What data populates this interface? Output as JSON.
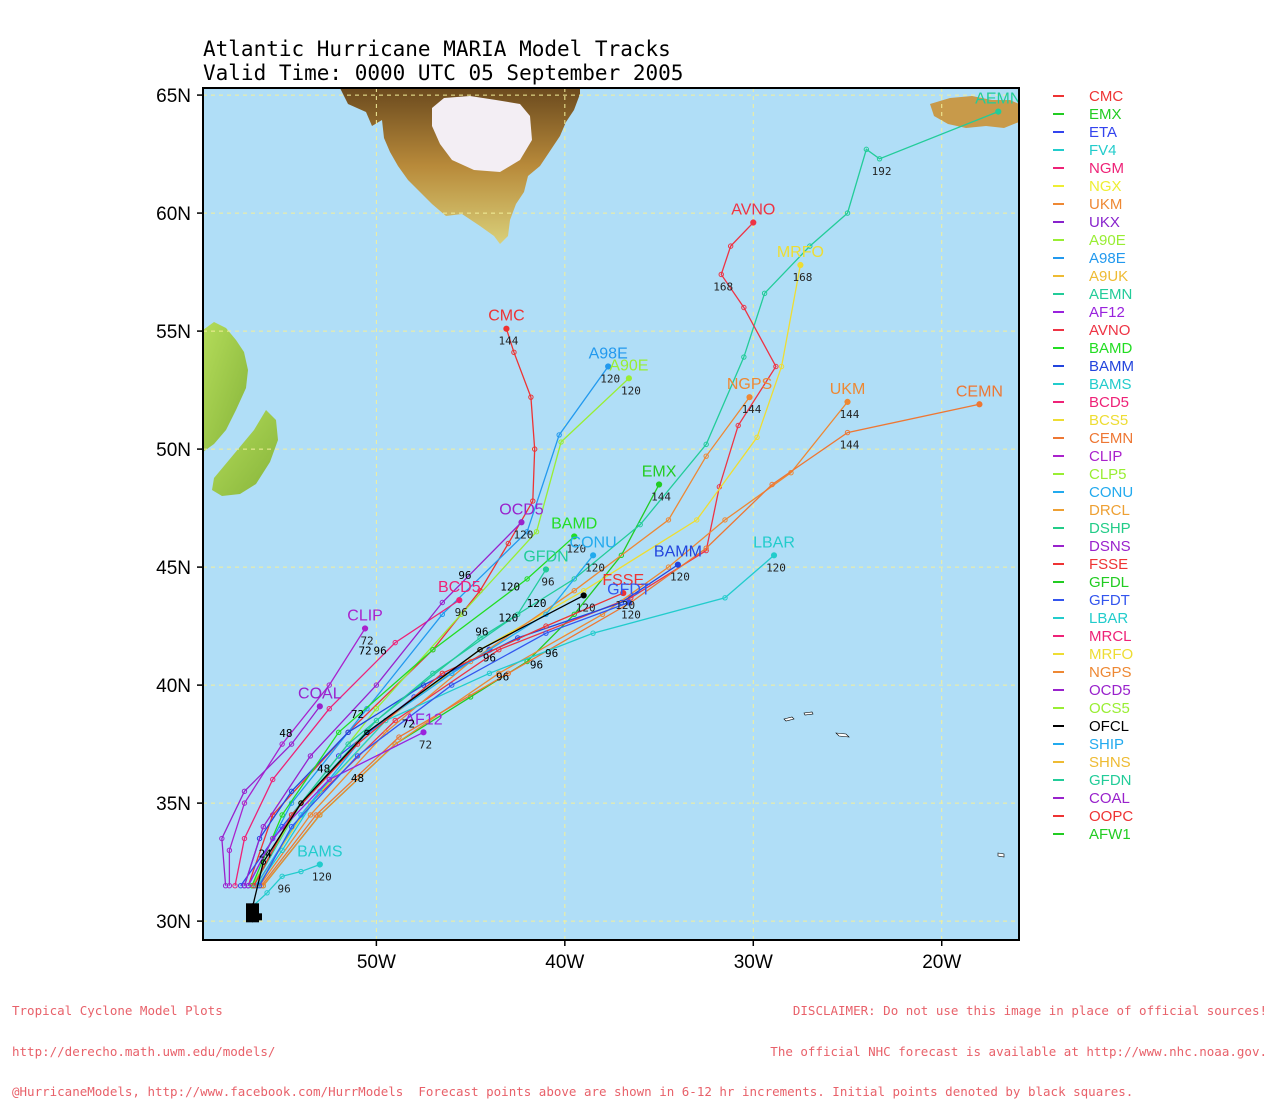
{
  "title": {
    "line1": "Atlantic Hurricane MARIA Model Tracks",
    "line2": "Valid Time: 0000 UTC 05 September 2005"
  },
  "axes": {
    "lat_labels": [
      "30N",
      "35N",
      "40N",
      "45N",
      "50N",
      "55N",
      "60N",
      "65N"
    ],
    "lon_labels": [
      "50W",
      "40W",
      "30W",
      "20W"
    ],
    "lat_range": [
      29.2,
      65.3
    ],
    "lon_range": [
      -59.2,
      -15.9
    ]
  },
  "colors": {
    "ocean": "#b0def7",
    "grid": "#f3f09a",
    "land_low": "#9ccc3a",
    "land_high": "#b5782a",
    "ice": "#ffffff"
  },
  "legend": [
    {
      "name": "CMC",
      "color": "#ee3333"
    },
    {
      "name": "EMX",
      "color": "#22cc22"
    },
    {
      "name": "ETA",
      "color": "#3344ee"
    },
    {
      "name": "FV4",
      "color": "#22cccc"
    },
    {
      "name": "NGM",
      "color": "#ee2277"
    },
    {
      "name": "NGX",
      "color": "#eeee33"
    },
    {
      "name": "UKM",
      "color": "#ee8833"
    },
    {
      "name": "UKX",
      "color": "#8822cc"
    },
    {
      "name": "A90E",
      "color": "#99ee33"
    },
    {
      "name": "A98E",
      "color": "#2299ee"
    },
    {
      "name": "A9UK",
      "color": "#eebb33"
    },
    {
      "name": "AEMN",
      "color": "#22cc99"
    },
    {
      "name": "AF12",
      "color": "#9922dd"
    },
    {
      "name": "AVNO",
      "color": "#ee3344"
    },
    {
      "name": "BAMD",
      "color": "#22dd22"
    },
    {
      "name": "BAMM",
      "color": "#2244dd"
    },
    {
      "name": "BAMS",
      "color": "#22cccc"
    },
    {
      "name": "BCD5",
      "color": "#ee2277"
    },
    {
      "name": "BCS5",
      "color": "#eedd33"
    },
    {
      "name": "CEMN",
      "color": "#ee7733"
    },
    {
      "name": "CLIP",
      "color": "#aa22cc"
    },
    {
      "name": "CLP5",
      "color": "#99ee33"
    },
    {
      "name": "CONU",
      "color": "#22aaee"
    },
    {
      "name": "DRCL",
      "color": "#eea033"
    },
    {
      "name": "DSHP",
      "color": "#22cc88"
    },
    {
      "name": "DSNS",
      "color": "#9922cc"
    },
    {
      "name": "FSSE",
      "color": "#ee3333"
    },
    {
      "name": "GFDL",
      "color": "#22cc22"
    },
    {
      "name": "GFDT",
      "color": "#3355ee"
    },
    {
      "name": "LBAR",
      "color": "#22cccc"
    },
    {
      "name": "MRCL",
      "color": "#ee2277"
    },
    {
      "name": "MRFO",
      "color": "#eedd33"
    },
    {
      "name": "NGPS",
      "color": "#ee8833"
    },
    {
      "name": "OCD5",
      "color": "#9922cc"
    },
    {
      "name": "OCS5",
      "color": "#99ee33"
    },
    {
      "name": "OFCL",
      "color": "#000000"
    },
    {
      "name": "SHIP",
      "color": "#22aaee"
    },
    {
      "name": "SHNS",
      "color": "#eebb33"
    },
    {
      "name": "GFDN",
      "color": "#22cc99"
    },
    {
      "name": "COAL",
      "color": "#9922cc"
    },
    {
      "name": "OOPC",
      "color": "#ee3333"
    },
    {
      "name": "AFW1",
      "color": "#22cc22"
    }
  ],
  "start": {
    "lat": 30.5,
    "lon": -56.6
  },
  "tracks": [
    {
      "name": "CMC",
      "color": "#ee3333",
      "label": "CMC",
      "pts": [
        [
          31.5,
          -56.8
        ],
        [
          34.5,
          -55.5
        ],
        [
          38.0,
          -51.5
        ],
        [
          41.5,
          -47.0
        ],
        [
          44.0,
          -44.5
        ],
        [
          46.0,
          -43.0
        ],
        [
          47.8,
          -41.7
        ],
        [
          50.0,
          -41.6
        ],
        [
          52.2,
          -41.8
        ],
        [
          54.1,
          -42.7
        ],
        [
          55.1,
          -43.1
        ]
      ],
      "ticks": [
        {
          "i": 10,
          "t": "144"
        }
      ]
    },
    {
      "name": "EMX",
      "color": "#22cc22",
      "label": "EMX",
      "pts": [
        [
          31.5,
          -56.0
        ],
        [
          34.5,
          -53.0
        ],
        [
          37.5,
          -49.0
        ],
        [
          39.5,
          -45.0
        ],
        [
          41.0,
          -42.0
        ],
        [
          43.0,
          -39.5
        ],
        [
          45.5,
          -37.0
        ],
        [
          48.5,
          -35.0
        ]
      ],
      "ticks": [
        {
          "i": 7,
          "t": "144"
        }
      ]
    },
    {
      "name": "ETA",
      "color": "#3344ee",
      "label": "",
      "pts": [
        [
          31.5,
          -57.2
        ],
        [
          34.0,
          -55.0
        ],
        [
          37.0,
          -52.0
        ],
        [
          39.5,
          -48.0
        ],
        [
          41.5,
          -44.0
        ]
      ],
      "ticks": []
    },
    {
      "name": "AEMN",
      "color": "#22cc99",
      "label": "AEMN",
      "pts": [
        [
          31.5,
          -56.5
        ],
        [
          35.0,
          -54.0
        ],
        [
          38.5,
          -50.0
        ],
        [
          42.0,
          -44.5
        ],
        [
          44.5,
          -39.5
        ],
        [
          46.8,
          -36.0
        ],
        [
          50.2,
          -32.5
        ],
        [
          53.9,
          -30.5
        ],
        [
          56.6,
          -29.4
        ],
        [
          58.6,
          -27.0
        ],
        [
          60.0,
          -25.0
        ],
        [
          62.7,
          -24.0
        ],
        [
          62.3,
          -23.3
        ],
        [
          64.3,
          -17.0
        ]
      ],
      "ticks": [
        {
          "i": 12,
          "t": "192"
        }
      ]
    },
    {
      "name": "AVNO",
      "color": "#ee3344",
      "label": "AVNO",
      "pts": [
        [
          31.5,
          -56.4
        ],
        [
          35.0,
          -53.5
        ],
        [
          38.5,
          -49.0
        ],
        [
          41.5,
          -43.5
        ],
        [
          43.7,
          -36.5
        ],
        [
          45.7,
          -32.5
        ],
        [
          48.4,
          -31.8
        ],
        [
          51.0,
          -30.8
        ],
        [
          53.5,
          -28.8
        ],
        [
          56.0,
          -30.5
        ],
        [
          57.4,
          -31.7
        ],
        [
          58.6,
          -31.2
        ],
        [
          59.6,
          -30.0
        ]
      ],
      "ticks": [
        {
          "i": 10,
          "t": "168"
        }
      ]
    },
    {
      "name": "MRFO",
      "color": "#eedd33",
      "label": "MRFO",
      "pts": [
        [
          31.5,
          -56.4
        ],
        [
          35.0,
          -53.5
        ],
        [
          38.5,
          -49.5
        ],
        [
          41.5,
          -44.5
        ],
        [
          44.0,
          -39.0
        ],
        [
          47.0,
          -33.0
        ],
        [
          50.5,
          -29.8
        ],
        [
          53.5,
          -28.5
        ],
        [
          57.8,
          -27.5
        ]
      ],
      "ticks": [
        {
          "i": 8,
          "t": "168"
        }
      ]
    },
    {
      "name": "A98E",
      "color": "#2299ee",
      "label": "A98E",
      "pts": [
        [
          31.5,
          -56.8
        ],
        [
          35.0,
          -54.5
        ],
        [
          39.0,
          -50.5
        ],
        [
          43.0,
          -46.5
        ],
        [
          46.5,
          -42.0
        ],
        [
          50.6,
          -40.3
        ],
        [
          53.5,
          -37.7
        ]
      ],
      "ticks": [
        {
          "i": 6,
          "t": "120"
        }
      ]
    },
    {
      "name": "A90E",
      "color": "#99ee33",
      "label": "A90E",
      "pts": [
        [
          31.5,
          -56.6
        ],
        [
          35.0,
          -54.0
        ],
        [
          39.0,
          -50.0
        ],
        [
          43.0,
          -45.5
        ],
        [
          46.5,
          -41.5
        ],
        [
          50.3,
          -40.2
        ],
        [
          53.0,
          -36.6
        ]
      ],
      "ticks": [
        {
          "i": 6,
          "t": "120"
        }
      ]
    },
    {
      "name": "NGPS",
      "color": "#ee8833",
      "label": "NGPS",
      "pts": [
        [
          31.5,
          -56.2
        ],
        [
          34.5,
          -53.5
        ],
        [
          38.0,
          -49.5
        ],
        [
          41.0,
          -45.0
        ],
        [
          44.0,
          -39.5
        ],
        [
          47.0,
          -34.5
        ],
        [
          49.7,
          -32.5
        ],
        [
          52.2,
          -30.2
        ]
      ],
      "ticks": [
        {
          "i": 7,
          "t": "144"
        }
      ]
    },
    {
      "name": "UKM",
      "color": "#ee8833",
      "label": "UKM",
      "pts": [
        [
          31.5,
          -56.0
        ],
        [
          34.5,
          -53.0
        ],
        [
          37.5,
          -49.0
        ],
        [
          40.5,
          -43.5
        ],
        [
          43.0,
          -38.0
        ],
        [
          45.0,
          -34.5
        ],
        [
          47.0,
          -31.5
        ],
        [
          49.0,
          -28.0
        ],
        [
          52.0,
          -25.0
        ]
      ],
      "ticks": [
        {
          "i": 8,
          "t": "144"
        }
      ]
    },
    {
      "name": "CEMN",
      "color": "#ee7733",
      "label": "CEMN",
      "pts": [
        [
          31.5,
          -56.1
        ],
        [
          34.5,
          -53.2
        ],
        [
          37.8,
          -48.8
        ],
        [
          40.5,
          -43.0
        ],
        [
          43.5,
          -36.5
        ],
        [
          45.8,
          -32.5
        ],
        [
          48.5,
          -29.0
        ],
        [
          50.7,
          -25.0
        ],
        [
          51.9,
          -18.0
        ]
      ],
      "ticks": [
        {
          "i": 7,
          "t": "144"
        }
      ]
    },
    {
      "name": "LBAR",
      "color": "#22cccc",
      "label": "LBAR",
      "pts": [
        [
          31.5,
          -56.3
        ],
        [
          33.0,
          -55.0
        ],
        [
          35.5,
          -53.0
        ],
        [
          38.5,
          -49.5
        ],
        [
          40.5,
          -44.0
        ],
        [
          42.2,
          -38.5
        ],
        [
          43.7,
          -31.5
        ],
        [
          45.5,
          -28.9
        ]
      ],
      "ticks": [
        {
          "i": 7,
          "t": "120"
        }
      ]
    },
    {
      "name": "BAMM",
      "color": "#2244dd",
      "label": "BAMM",
      "pts": [
        [
          31.5,
          -57.0
        ],
        [
          33.5,
          -56.2
        ],
        [
          35.5,
          -54.5
        ],
        [
          38.0,
          -51.5
        ],
        [
          40.0,
          -47.5
        ],
        [
          42.0,
          -42.5
        ],
        [
          43.5,
          -37.0
        ],
        [
          45.1,
          -34.0
        ]
      ],
      "ticks": [
        {
          "i": 7,
          "t": "120"
        }
      ]
    },
    {
      "name": "BAMS",
      "color": "#22cccc",
      "label": "BAMS",
      "pts": [
        [
          30.6,
          -56.6
        ],
        [
          31.2,
          -55.8
        ],
        [
          31.9,
          -55.0
        ],
        [
          32.1,
          -54.0
        ],
        [
          32.4,
          -53.0
        ]
      ],
      "ticks": [
        {
          "i": 2,
          "t": "96"
        },
        {
          "i": 4,
          "t": "120"
        }
      ]
    },
    {
      "name": "BAMD",
      "color": "#22dd22",
      "label": "BAMD",
      "pts": [
        [
          31.5,
          -56.6
        ],
        [
          34.5,
          -55.0
        ],
        [
          38.0,
          -52.0
        ],
        [
          41.5,
          -47.0
        ],
        [
          44.5,
          -42.0
        ],
        [
          46.3,
          -39.5
        ]
      ],
      "ticks": [
        {
          "i": 5,
          "t": "120"
        }
      ]
    },
    {
      "name": "CONU",
      "color": "#22aaee",
      "label": "CONU",
      "pts": [
        [
          31.5,
          -56.4
        ],
        [
          34.5,
          -54.0
        ],
        [
          38.0,
          -50.5
        ],
        [
          40.5,
          -46.0
        ],
        [
          43.0,
          -41.0
        ],
        [
          45.5,
          -38.5
        ]
      ],
      "ticks": [
        {
          "i": 5,
          "t": "120"
        }
      ]
    },
    {
      "name": "GFDN",
      "color": "#22cc99",
      "label": "GFDN",
      "pts": [
        [
          31.5,
          -56.5
        ],
        [
          34.5,
          -54.5
        ],
        [
          37.5,
          -51.5
        ],
        [
          40.5,
          -47.0
        ],
        [
          43.0,
          -42.5
        ],
        [
          44.9,
          -41.0
        ]
      ],
      "ticks": [
        {
          "i": 5,
          "t": "96"
        }
      ]
    },
    {
      "name": "BCD5",
      "color": "#ee2277",
      "label": "BCD5",
      "pts": [
        [
          31.5,
          -57.5
        ],
        [
          33.5,
          -57.0
        ],
        [
          36.0,
          -55.5
        ],
        [
          39.0,
          -52.5
        ],
        [
          41.8,
          -49.0
        ],
        [
          43.6,
          -45.6
        ]
      ],
      "ticks": [
        {
          "i": 5,
          "t": "96"
        }
      ]
    },
    {
      "name": "CLIP",
      "color": "#aa22cc",
      "label": "CLIP",
      "pts": [
        [
          31.5,
          -57.8
        ],
        [
          33.0,
          -57.8
        ],
        [
          35.0,
          -57.0
        ],
        [
          37.5,
          -55.0
        ],
        [
          40.0,
          -52.5
        ],
        [
          42.4,
          -50.6
        ]
      ],
      "ticks": [
        {
          "i": 5,
          "t": "72"
        }
      ]
    },
    {
      "name": "OCD5",
      "color": "#9922cc",
      "label": "OCD5",
      "pts": [
        [
          31.5,
          -57.0
        ],
        [
          34.0,
          -56.0
        ],
        [
          37.0,
          -53.5
        ],
        [
          40.0,
          -50.0
        ],
        [
          43.5,
          -46.5
        ],
        [
          46.9,
          -42.3
        ]
      ],
      "ticks": [
        {
          "i": 5,
          "t": "120"
        }
      ]
    },
    {
      "name": "AF12",
      "color": "#9922dd",
      "label": "AF12",
      "pts": [
        [
          31.5,
          -56.8
        ],
        [
          33.5,
          -55.5
        ],
        [
          36.0,
          -52.5
        ],
        [
          38.0,
          -47.5
        ]
      ],
      "ticks": [
        {
          "i": 3,
          "t": "72"
        }
      ]
    },
    {
      "name": "COAL",
      "color": "#9922cc",
      "label": "COAL",
      "pts": [
        [
          31.5,
          -58.0
        ],
        [
          33.5,
          -58.2
        ],
        [
          35.5,
          -57.0
        ],
        [
          37.5,
          -54.5
        ],
        [
          39.1,
          -53.0
        ]
      ],
      "ticks": []
    },
    {
      "name": "FSSE",
      "color": "#ee3333",
      "label": "FSSE",
      "pts": [
        [
          31.5,
          -56.5
        ],
        [
          34.5,
          -54.5
        ],
        [
          37.5,
          -51.0
        ],
        [
          40.5,
          -46.5
        ],
        [
          42.5,
          -41.0
        ],
        [
          43.9,
          -36.9
        ]
      ],
      "ticks": [
        {
          "i": 5,
          "t": "120"
        }
      ]
    },
    {
      "name": "GFDT",
      "color": "#3355ee",
      "label": "GFDT",
      "pts": [
        [
          31.5,
          -56.2
        ],
        [
          34.0,
          -54.5
        ],
        [
          37.0,
          -51.0
        ],
        [
          40.0,
          -46.0
        ],
        [
          42.2,
          -41.0
        ],
        [
          43.5,
          -36.6
        ]
      ],
      "ticks": [
        {
          "i": 5,
          "t": "120"
        }
      ]
    },
    {
      "name": "OFCL",
      "color": "#000000",
      "label": "",
      "pts": [
        [
          30.5,
          -56.6
        ],
        [
          32.5,
          -56.0
        ],
        [
          35.0,
          -54.0
        ],
        [
          38.0,
          -50.5
        ],
        [
          41.5,
          -44.5
        ],
        [
          43.8,
          -39.0
        ]
      ],
      "ticks": [
        {
          "i": 5,
          "t": "120"
        }
      ]
    }
  ],
  "markers": [
    {
      "text": "72",
      "lat": 41.3,
      "lon": -50.6,
      "c": "#000"
    },
    {
      "text": "96",
      "lat": 41.3,
      "lon": -49.8,
      "c": "#000"
    },
    {
      "text": "72",
      "lat": 38.2,
      "lon": -48.3,
      "c": "#000"
    },
    {
      "text": "72",
      "lat": 38.6,
      "lon": -51.0,
      "c": "#000"
    },
    {
      "text": "48",
      "lat": 37.8,
      "lon": -54.8,
      "c": "#000"
    },
    {
      "text": "48",
      "lat": 36.3,
      "lon": -52.8,
      "c": "#000"
    },
    {
      "text": "96",
      "lat": 40.2,
      "lon": -43.3,
      "c": "#000"
    },
    {
      "text": "96",
      "lat": 40.7,
      "lon": -41.5,
      "c": "#000"
    },
    {
      "text": "96",
      "lat": 41.0,
      "lon": -44.0,
      "c": "#000"
    },
    {
      "text": "48",
      "lat": 35.9,
      "lon": -51.0,
      "c": "#000"
    },
    {
      "text": "24",
      "lat": 32.7,
      "lon": -55.9,
      "c": "#000"
    },
    {
      "text": "96",
      "lat": 42.1,
      "lon": -44.4,
      "c": "#000"
    },
    {
      "text": "96",
      "lat": 41.2,
      "lon": -40.7,
      "c": "#000"
    },
    {
      "text": "120",
      "lat": 42.7,
      "lon": -43.0,
      "c": "#000"
    },
    {
      "text": "120",
      "lat": 44.0,
      "lon": -42.9,
      "c": "#000"
    },
    {
      "text": "96",
      "lat": 44.5,
      "lon": -45.3,
      "c": "#000"
    },
    {
      "text": "120",
      "lat": 43.3,
      "lon": -41.5,
      "c": "#000"
    }
  ],
  "footer": {
    "left": [
      "Tropical Cyclone Model Plots",
      "http://derecho.math.uwm.edu/models/",
      "@HurricaneModels, http://www.facebook.com/HurrModels  Forecast points above are shown in 6-12 hr increments. Initial points denoted by black squares."
    ],
    "right": [
      "DISCLAIMER: Do not use this image in place of official sources!",
      "The official NHC forecast is available at http://www.nhc.noaa.gov."
    ]
  }
}
